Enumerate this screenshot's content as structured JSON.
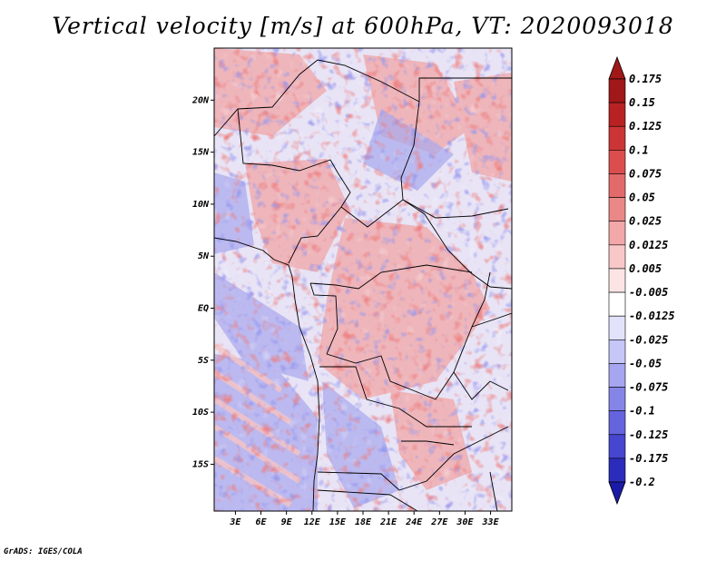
{
  "title": "Vertical velocity [m/s] at 600hPa, VT: 2020093018",
  "credit": "GrADS: IGES/COLA",
  "map": {
    "lat_labels": [
      {
        "lat": 20,
        "label": "20N"
      },
      {
        "lat": 15,
        "label": "15N"
      },
      {
        "lat": 10,
        "label": "10N"
      },
      {
        "lat": 5,
        "label": "5N"
      },
      {
        "lat": 0,
        "label": "EQ"
      },
      {
        "lat": -5,
        "label": "5S"
      },
      {
        "lat": -10,
        "label": "10S"
      },
      {
        "lat": -15,
        "label": "15S"
      }
    ],
    "lon_labels": [
      {
        "lon": 3,
        "label": "3E"
      },
      {
        "lon": 6,
        "label": "6E"
      },
      {
        "lon": 9,
        "label": "9E"
      },
      {
        "lon": 12,
        "label": "12E"
      },
      {
        "lon": 15,
        "label": "15E"
      },
      {
        "lon": 18,
        "label": "18E"
      },
      {
        "lon": 21,
        "label": "21E"
      },
      {
        "lon": 24,
        "label": "24E"
      },
      {
        "lon": 27,
        "label": "27E"
      },
      {
        "lon": 30,
        "label": "30E"
      },
      {
        "lon": 33,
        "label": "33E"
      }
    ],
    "lon_range": [
      0.5,
      35.5
    ],
    "lat_range": [
      -19.5,
      25.0
    ]
  },
  "colorbar": {
    "levels": [
      {
        "label": "0.175",
        "color": "#a01818"
      },
      {
        "label": "0.15",
        "color": "#b82222"
      },
      {
        "label": "0.125",
        "color": "#cc3535"
      },
      {
        "label": "0.1",
        "color": "#dc4e4e"
      },
      {
        "label": "0.075",
        "color": "#e36a6a"
      },
      {
        "label": "0.05",
        "color": "#ea8888"
      },
      {
        "label": "0.025",
        "color": "#f2a8a8"
      },
      {
        "label": "0.0125",
        "color": "#f8c8c8"
      },
      {
        "label": "0.005",
        "color": "#fce4e4"
      },
      {
        "label": "-0.005",
        "color": "#ffffff"
      },
      {
        "label": "-0.0125",
        "color": "#e2e2fb"
      },
      {
        "label": "-0.025",
        "color": "#c6c6f7"
      },
      {
        "label": "-0.05",
        "color": "#a6a6f0"
      },
      {
        "label": "-0.075",
        "color": "#8585e8"
      },
      {
        "label": "-0.1",
        "color": "#6464de"
      },
      {
        "label": "-0.125",
        "color": "#4646d0"
      },
      {
        "label": "-0.175",
        "color": "#2c2cbc"
      },
      {
        "label": "-0.2",
        "color": "#1a1aa6"
      }
    ],
    "top_triangle_color": "#a01818",
    "bottom_triangle_color": "#1a1aa6"
  }
}
